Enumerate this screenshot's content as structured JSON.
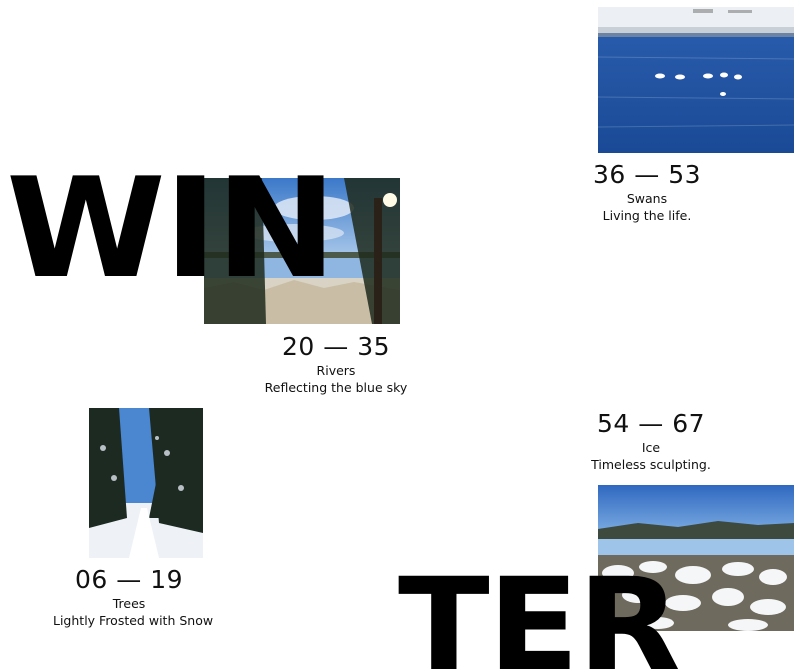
{
  "headline": {
    "part1": "WIN",
    "part2": "TER"
  },
  "sections": {
    "swans": {
      "range": "36 — 53",
      "title": "Swans",
      "desc": "Living the life."
    },
    "rivers": {
      "range": "20 — 35",
      "title": "Rivers",
      "desc": "Reflecting the blue sky"
    },
    "ice": {
      "range": "54 — 67",
      "title": "Ice",
      "desc": "Timeless sculpting."
    },
    "trees": {
      "range": "06 — 19",
      "title": "Trees",
      "desc": "Lightly Frosted with Snow"
    }
  },
  "colors": {
    "background": "#ffffff",
    "text": "#111111",
    "headline": "#000000",
    "sky": "#3f7fcf",
    "water": "#1f4f9c",
    "snow": "#eef2f6"
  }
}
